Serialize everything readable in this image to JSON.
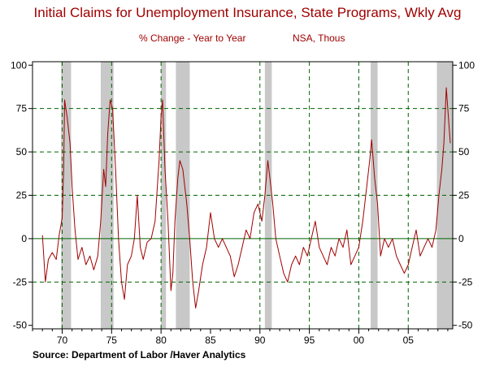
{
  "chart_data": {
    "type": "line",
    "title": "Initial Claims for Unemployment Insurance, State Programs, Wkly Avg",
    "subtitle_left": "% Change - Year to Year",
    "subtitle_right": "NSA, Thous",
    "source": "Source:  Department of Labor /Haver Analytics",
    "colors": {
      "line": "#a00000",
      "recession": "#c8c8c8",
      "grid": "#006400",
      "text": "#a00000"
    },
    "xlim": [
      1967,
      2009.5
    ],
    "ylim": [
      -52,
      102
    ],
    "x_ticks": [
      {
        "value": 1970,
        "label": "70"
      },
      {
        "value": 1975,
        "label": "75"
      },
      {
        "value": 1980,
        "label": "80"
      },
      {
        "value": 1985,
        "label": "85"
      },
      {
        "value": 1990,
        "label": "90"
      },
      {
        "value": 1995,
        "label": "95"
      },
      {
        "value": 2000,
        "label": "00"
      },
      {
        "value": 2005,
        "label": "05"
      }
    ],
    "y_ticks": [
      {
        "value": 100,
        "label": "100"
      },
      {
        "value": 75,
        "label": "75"
      },
      {
        "value": 50,
        "label": "50"
      },
      {
        "value": 25,
        "label": "25"
      },
      {
        "value": 0,
        "label": "0"
      },
      {
        "value": -25,
        "label": "-25"
      },
      {
        "value": -50,
        "label": "-50"
      }
    ],
    "grid_x": [
      1970,
      1975,
      1980,
      1990,
      1995,
      2000,
      2005
    ],
    "grid_y": [
      75,
      50,
      25,
      -25
    ],
    "recessions": [
      [
        1969.9,
        1970.9
      ],
      [
        1973.9,
        1975.2
      ],
      [
        1980.0,
        1980.5
      ],
      [
        1981.5,
        1982.9
      ],
      [
        1990.5,
        1991.2
      ],
      [
        2001.2,
        2001.9
      ],
      [
        2007.9,
        2009.5
      ]
    ],
    "series": [
      {
        "name": "Initial Claims % Change Y/Y",
        "points": [
          [
            1968.0,
            2
          ],
          [
            1968.3,
            -25
          ],
          [
            1968.6,
            -12
          ],
          [
            1969.0,
            -8
          ],
          [
            1969.4,
            -12
          ],
          [
            1969.7,
            2
          ],
          [
            1970.0,
            12
          ],
          [
            1970.15,
            40
          ],
          [
            1970.25,
            80
          ],
          [
            1970.5,
            70
          ],
          [
            1970.8,
            55
          ],
          [
            1971.0,
            30
          ],
          [
            1971.3,
            5
          ],
          [
            1971.6,
            -12
          ],
          [
            1972.0,
            -5
          ],
          [
            1972.4,
            -15
          ],
          [
            1972.8,
            -10
          ],
          [
            1973.2,
            -18
          ],
          [
            1973.6,
            -10
          ],
          [
            1973.9,
            10
          ],
          [
            1974.2,
            40
          ],
          [
            1974.4,
            30
          ],
          [
            1974.6,
            60
          ],
          [
            1974.85,
            80
          ],
          [
            1975.1,
            75
          ],
          [
            1975.4,
            40
          ],
          [
            1975.7,
            0
          ],
          [
            1976.0,
            -25
          ],
          [
            1976.3,
            -35
          ],
          [
            1976.6,
            -15
          ],
          [
            1977.0,
            -10
          ],
          [
            1977.3,
            0
          ],
          [
            1977.6,
            25
          ],
          [
            1977.9,
            -5
          ],
          [
            1978.2,
            -12
          ],
          [
            1978.6,
            -2
          ],
          [
            1979.0,
            0
          ],
          [
            1979.4,
            10
          ],
          [
            1979.8,
            45
          ],
          [
            1980.0,
            70
          ],
          [
            1980.15,
            80
          ],
          [
            1980.4,
            40
          ],
          [
            1980.7,
            10
          ],
          [
            1981.0,
            -30
          ],
          [
            1981.2,
            -20
          ],
          [
            1981.4,
            10
          ],
          [
            1981.7,
            35
          ],
          [
            1981.9,
            45
          ],
          [
            1982.2,
            40
          ],
          [
            1982.6,
            20
          ],
          [
            1982.9,
            0
          ],
          [
            1983.2,
            -25
          ],
          [
            1983.5,
            -40
          ],
          [
            1983.8,
            -30
          ],
          [
            1984.2,
            -15
          ],
          [
            1984.6,
            -5
          ],
          [
            1985.0,
            15
          ],
          [
            1985.4,
            0
          ],
          [
            1985.8,
            -5
          ],
          [
            1986.2,
            0
          ],
          [
            1986.6,
            -5
          ],
          [
            1987.0,
            -10
          ],
          [
            1987.4,
            -22
          ],
          [
            1987.8,
            -15
          ],
          [
            1988.2,
            -5
          ],
          [
            1988.6,
            5
          ],
          [
            1989.0,
            0
          ],
          [
            1989.4,
            15
          ],
          [
            1989.8,
            20
          ],
          [
            1990.2,
            10
          ],
          [
            1990.5,
            25
          ],
          [
            1990.8,
            45
          ],
          [
            1991.0,
            35
          ],
          [
            1991.3,
            20
          ],
          [
            1991.6,
            0
          ],
          [
            1992.0,
            -10
          ],
          [
            1992.4,
            -20
          ],
          [
            1992.8,
            -25
          ],
          [
            1993.2,
            -15
          ],
          [
            1993.6,
            -10
          ],
          [
            1994.0,
            -15
          ],
          [
            1994.4,
            -5
          ],
          [
            1994.8,
            -10
          ],
          [
            1995.2,
            0
          ],
          [
            1995.6,
            10
          ],
          [
            1996.0,
            -5
          ],
          [
            1996.4,
            -10
          ],
          [
            1996.8,
            -15
          ],
          [
            1997.2,
            -5
          ],
          [
            1997.6,
            -10
          ],
          [
            1998.0,
            0
          ],
          [
            1998.4,
            -5
          ],
          [
            1998.8,
            5
          ],
          [
            1999.2,
            -15
          ],
          [
            1999.6,
            -10
          ],
          [
            2000.0,
            -5
          ],
          [
            2000.4,
            10
          ],
          [
            2000.8,
            30
          ],
          [
            2001.1,
            45
          ],
          [
            2001.3,
            57
          ],
          [
            2001.6,
            35
          ],
          [
            2001.9,
            20
          ],
          [
            2002.2,
            -10
          ],
          [
            2002.6,
            0
          ],
          [
            2003.0,
            -5
          ],
          [
            2003.4,
            0
          ],
          [
            2003.8,
            -10
          ],
          [
            2004.2,
            -15
          ],
          [
            2004.6,
            -20
          ],
          [
            2005.0,
            -15
          ],
          [
            2005.4,
            -5
          ],
          [
            2005.8,
            5
          ],
          [
            2006.2,
            -10
          ],
          [
            2006.6,
            -5
          ],
          [
            2007.0,
            0
          ],
          [
            2007.4,
            -5
          ],
          [
            2007.8,
            5
          ],
          [
            2008.1,
            25
          ],
          [
            2008.4,
            40
          ],
          [
            2008.6,
            55
          ],
          [
            2008.85,
            87
          ],
          [
            2009.0,
            75
          ],
          [
            2009.25,
            55
          ]
        ]
      }
    ]
  }
}
